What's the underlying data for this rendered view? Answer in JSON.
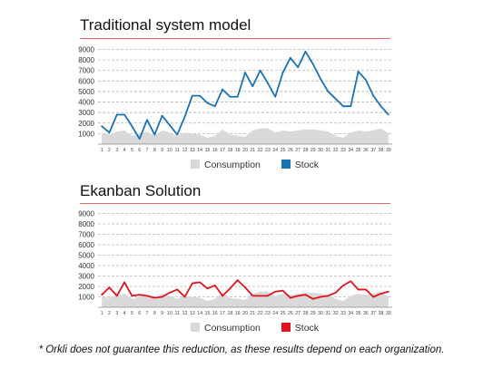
{
  "charts": [
    {
      "title": "Traditional system model",
      "legend": {
        "consumption": "Consumption",
        "stock": "Stock"
      }
    },
    {
      "title": "Ekanban Solution",
      "legend": {
        "consumption": "Consumption",
        "stock": "Stock"
      }
    }
  ],
  "footnote": "* Orkli does not guarantee this reduction, as these results depend on each organization.",
  "chart_data": [
    {
      "type": "line",
      "title": "Traditional system model",
      "x": [
        "1",
        "2",
        "3",
        "4",
        "5",
        "6",
        "7",
        "8",
        "9",
        "10",
        "11",
        "12",
        "13",
        "14",
        "15",
        "16",
        "17",
        "18",
        "19",
        "20",
        "21",
        "22",
        "23",
        "24",
        "25",
        "26",
        "27",
        "28",
        "29",
        "30",
        "31",
        "32",
        "33",
        "34",
        "35",
        "36",
        "37",
        "38",
        "39"
      ],
      "ylim": [
        0,
        9000
      ],
      "yticks": [
        1000,
        2000,
        3000,
        4000,
        5000,
        6000,
        7000,
        8000,
        9000
      ],
      "grid": true,
      "legend_position": "bottom",
      "series": [
        {
          "name": "Consumption",
          "kind": "area",
          "color": "#d9d9d9",
          "values": [
            1000,
            900,
            1200,
            1300,
            800,
            1000,
            1200,
            800,
            1300,
            1100,
            800,
            1100,
            1000,
            900,
            600,
            800,
            1400,
            900,
            800,
            700,
            1300,
            1500,
            1500,
            1100,
            1300,
            1200,
            1300,
            1400,
            1400,
            1300,
            1200,
            800,
            600,
            1100,
            1300,
            1200,
            1300,
            1500,
            1000
          ]
        },
        {
          "name": "Stock",
          "kind": "line",
          "color": "#1a73b5",
          "values": [
            1700,
            1100,
            2800,
            2800,
            1700,
            500,
            2300,
            900,
            2700,
            1800,
            900,
            2600,
            4600,
            4600,
            3900,
            3600,
            5200,
            4500,
            4500,
            6800,
            5500,
            7000,
            5800,
            4500,
            6800,
            8200,
            7300,
            8800,
            7600,
            6200,
            5000,
            4300,
            3600,
            3600,
            6900,
            6100,
            4600,
            3600,
            2800
          ]
        }
      ]
    },
    {
      "type": "line",
      "title": "Ekanban Solution",
      "x": [
        "1",
        "2",
        "3",
        "4",
        "5",
        "6",
        "7",
        "8",
        "9",
        "10",
        "11",
        "12",
        "13",
        "14",
        "15",
        "16",
        "17",
        "18",
        "19",
        "20",
        "21",
        "22",
        "23",
        "24",
        "25",
        "26",
        "27",
        "28",
        "29",
        "30",
        "31",
        "32",
        "33",
        "34",
        "35",
        "36",
        "37",
        "38",
        "39"
      ],
      "ylim": [
        0,
        9000
      ],
      "yticks": [
        1000,
        2000,
        3000,
        4000,
        5000,
        6000,
        7000,
        8000,
        9000
      ],
      "grid": true,
      "legend_position": "bottom",
      "series": [
        {
          "name": "Consumption",
          "kind": "area",
          "color": "#d9d9d9",
          "values": [
            1000,
            900,
            1200,
            1300,
            800,
            1000,
            1200,
            800,
            1300,
            1100,
            800,
            1100,
            1000,
            900,
            600,
            800,
            1400,
            900,
            800,
            700,
            1300,
            1500,
            1500,
            1100,
            1300,
            1200,
            1300,
            1400,
            1400,
            1300,
            1200,
            800,
            600,
            1100,
            1300,
            1200,
            1300,
            1500,
            1000
          ]
        },
        {
          "name": "Stock",
          "kind": "line",
          "color": "#e0141e",
          "values": [
            1200,
            1900,
            1100,
            2400,
            1100,
            1200,
            1100,
            900,
            1000,
            1400,
            1700,
            1000,
            2300,
            2400,
            1800,
            2100,
            1100,
            1800,
            2600,
            1900,
            1100,
            1100,
            1100,
            1500,
            1600,
            900,
            1100,
            1200,
            800,
            1000,
            1100,
            1400,
            2100,
            2500,
            1700,
            1700,
            1000,
            1300,
            1500
          ]
        }
      ]
    }
  ]
}
